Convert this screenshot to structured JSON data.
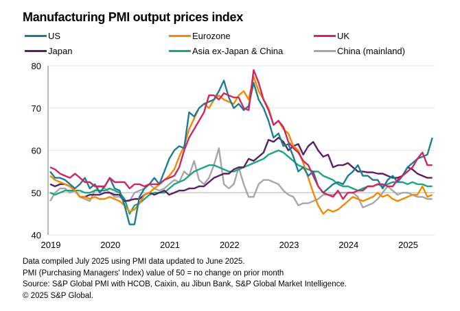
{
  "chart_data": {
    "type": "line",
    "title": "Manufacturing PMI output prices index",
    "xlabel": "",
    "ylabel": "",
    "ylim": [
      40,
      80
    ],
    "yticks": [
      40,
      50,
      60,
      70,
      80
    ],
    "xticks": [
      "2019",
      "2020",
      "2021",
      "2022",
      "2023",
      "2024",
      "2025"
    ],
    "x_start": "2019-01",
    "x_end": "2025-06",
    "frequency": "monthly",
    "grid": true,
    "legend_position": "top",
    "series": [
      {
        "name": "US",
        "color": "#1b7c94",
        "values": [
          55,
          53.5,
          53.5,
          53,
          52,
          51,
          52,
          53.5,
          51,
          52,
          50,
          51.5,
          53.5,
          51,
          50.5,
          47,
          42.5,
          42.5,
          49,
          51,
          52,
          53.5,
          52,
          55,
          58,
          60,
          61,
          60.5,
          69,
          68,
          70,
          71,
          71.5,
          72,
          74,
          76.5,
          72.5,
          70,
          71,
          69.5,
          70.5,
          76,
          72,
          70,
          67,
          63,
          64,
          61,
          61.5,
          58.5,
          55,
          56,
          54,
          55,
          51.5,
          50,
          51,
          52,
          52.5,
          52,
          54,
          55,
          56.5,
          54,
          54,
          53,
          53,
          51,
          53,
          54,
          52.5,
          54,
          56,
          57,
          58,
          58.5,
          59,
          63
        ]
      },
      {
        "name": "Eurozone",
        "color": "#f18a00",
        "values": [
          54,
          53,
          52.5,
          52,
          51.5,
          50.5,
          49,
          49,
          48.5,
          49,
          48.5,
          48.5,
          49,
          48.5,
          48,
          47,
          45.5,
          46,
          47.5,
          49.5,
          50,
          51,
          52,
          53,
          54,
          55.5,
          58.5,
          61,
          65,
          67.5,
          70,
          71,
          70,
          72,
          73,
          72,
          71.5,
          71,
          73,
          74,
          72,
          77.5,
          74,
          72,
          70,
          66,
          67,
          65,
          64,
          61,
          60,
          57,
          53.5,
          50,
          47,
          45,
          46,
          45.5,
          46,
          47,
          48,
          49,
          48.5,
          48,
          48.5,
          49,
          50,
          49,
          49.5,
          48.5,
          48,
          48.5,
          49,
          49.5,
          49.5,
          51.5,
          49,
          49.5
        ]
      },
      {
        "name": "UK",
        "color": "#d0255e",
        "values": [
          56,
          55.5,
          54.5,
          54,
          53.5,
          54.5,
          53.5,
          52.5,
          52.5,
          51.5,
          51.5,
          51.5,
          53.5,
          52.5,
          52.5,
          52.5,
          51,
          52,
          52,
          51.5,
          52,
          52,
          52,
          53,
          53.5,
          54,
          56,
          60,
          63,
          65,
          67,
          69,
          73,
          73,
          72,
          73.5,
          73,
          72.5,
          72.5,
          70,
          69.5,
          79,
          76,
          72,
          69.5,
          66,
          67,
          65.5,
          62,
          60.5,
          59.5,
          57.5,
          56.5,
          54,
          51.5,
          50,
          49.5,
          49,
          50.5,
          48.5,
          50,
          50,
          50.5,
          50.5,
          51.5,
          51.5,
          52,
          52,
          51.5,
          51.5,
          53,
          54,
          55,
          56,
          58,
          59.5,
          56.5,
          56.5
        ]
      },
      {
        "name": "Japan",
        "color": "#5b1e62",
        "values": [
          52,
          51.5,
          52,
          52,
          51.5,
          50.5,
          49,
          49,
          49.5,
          49.5,
          49.5,
          50,
          50,
          49.5,
          49.5,
          48,
          48.2,
          48.5,
          48.5,
          49.5,
          50,
          49.5,
          50,
          50.5,
          49.5,
          50,
          50.5,
          50.5,
          51,
          51,
          51.5,
          51.5,
          52.5,
          53.5,
          54,
          54.5,
          54.5,
          55.5,
          56,
          56,
          58,
          57.5,
          58.5,
          59.5,
          62.5,
          62,
          63,
          62,
          60,
          61,
          61.5,
          59,
          61,
          62,
          60,
          58.5,
          59,
          56,
          56.5,
          56.5,
          57,
          56,
          55,
          55,
          54.8,
          54.8,
          54.5,
          54.5,
          54,
          53.5,
          53.5,
          54,
          56,
          55.5,
          54.5,
          54,
          53.5,
          53.5
        ]
      },
      {
        "name": "Asia ex-Japan & China",
        "color": "#1aa57f",
        "values": [
          50,
          49.5,
          50,
          50.5,
          50.5,
          50.5,
          50.5,
          50,
          50,
          50.5,
          50.5,
          50.5,
          51,
          50.5,
          50,
          48.5,
          45,
          47,
          47.5,
          48.5,
          49.5,
          50,
          50,
          50,
          51,
          52,
          52.5,
          53,
          54,
          55,
          55.5,
          56,
          56.5,
          56.5,
          56,
          55.5,
          55,
          55,
          55.5,
          56,
          56.5,
          57,
          57.5,
          58,
          59,
          59.5,
          60,
          59.5,
          58.5,
          57.5,
          56.5,
          56,
          55.5,
          55,
          55,
          54,
          53.5,
          53,
          52,
          51.5,
          51.5,
          51,
          50.5,
          51,
          51.5,
          51.5,
          52,
          51.5,
          52,
          52.5,
          52.5,
          52.5,
          52,
          52.5,
          52,
          52,
          51.5,
          51.5
        ]
      },
      {
        "name": "China (mainland)",
        "color": "#a6a6a6",
        "values": [
          48,
          50,
          51,
          51,
          50,
          50.5,
          49,
          48.5,
          48,
          50.5,
          51.5,
          51,
          50,
          49,
          49,
          48,
          48,
          50,
          50.5,
          51,
          52,
          51,
          50.5,
          51,
          52,
          53,
          52.5,
          55,
          54,
          57.5,
          53,
          52,
          53.5,
          56.5,
          60.5,
          52,
          51,
          52,
          56,
          52,
          49,
          49,
          52,
          53,
          53,
          52.5,
          52,
          50.5,
          49.5,
          49,
          47,
          47.5,
          47.5,
          48,
          48.5,
          49.5,
          49.5,
          49.5,
          50,
          50,
          50,
          50,
          49,
          46.5,
          47,
          47.5,
          48.5,
          50,
          51.5,
          50.5,
          49.5,
          50,
          50,
          49.5,
          49,
          49,
          48.5,
          48.5
        ]
      }
    ]
  },
  "footnotes": [
    "Data compiled July 2025 using PMI data updated to June 2025.",
    "PMI (Purchasing Managers' Index) value of 50 = no change on prior month",
    "Source: S&P Global PMI with HCOB, Caixin, au Jibun Bank, S&P Global Market Intelligence.",
    "© 2025 S&P Global."
  ]
}
